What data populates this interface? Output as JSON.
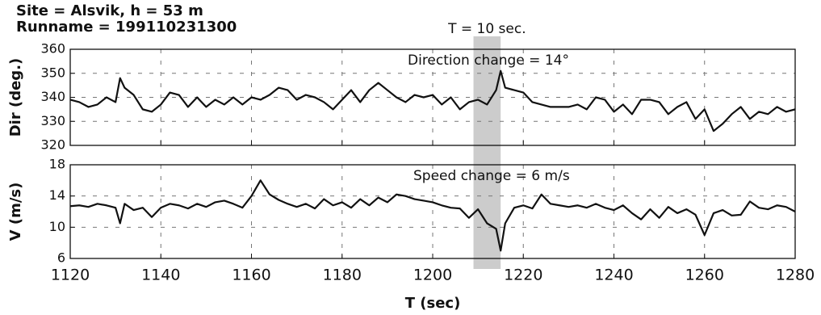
{
  "chart_data": [
    {
      "type": "line",
      "title": "Site = Alsvik, h = 53 m",
      "subtitle": "Runname = 199110231300",
      "ylabel": "Dir (deg.)",
      "highlight": [
        1209,
        1215
      ],
      "highlight_label": "T = 10 sec.",
      "annotation": "Direction change = 14°",
      "color": "#111111",
      "grid": true,
      "xlim": [
        1120,
        1280
      ],
      "xticks": [
        1120,
        1140,
        1160,
        1180,
        1200,
        1220,
        1240,
        1260,
        1280
      ],
      "ylim": [
        320,
        360
      ],
      "yticks": [
        320,
        330,
        340,
        350,
        360
      ],
      "x": [
        1120,
        1122,
        1124,
        1126,
        1128,
        1130,
        1131,
        1132,
        1134,
        1136,
        1138,
        1140,
        1142,
        1144,
        1146,
        1148,
        1150,
        1152,
        1154,
        1156,
        1158,
        1160,
        1162,
        1164,
        1166,
        1168,
        1170,
        1172,
        1174,
        1176,
        1178,
        1180,
        1182,
        1184,
        1186,
        1188,
        1190,
        1192,
        1194,
        1196,
        1198,
        1200,
        1202,
        1204,
        1206,
        1208,
        1210,
        1212,
        1214,
        1215,
        1216,
        1218,
        1220,
        1222,
        1224,
        1226,
        1228,
        1230,
        1232,
        1234,
        1236,
        1238,
        1240,
        1242,
        1244,
        1246,
        1248,
        1250,
        1252,
        1254,
        1256,
        1258,
        1260,
        1262,
        1264,
        1266,
        1268,
        1270,
        1272,
        1274,
        1276,
        1278,
        1280
      ],
      "values": [
        339,
        338,
        336,
        337,
        340,
        338,
        348,
        344,
        341,
        335,
        334,
        337,
        342,
        341,
        336,
        340,
        336,
        339,
        337,
        340,
        337,
        340,
        339,
        341,
        344,
        343,
        339,
        341,
        340,
        338,
        335,
        339,
        343,
        338,
        343,
        346,
        343,
        340,
        338,
        341,
        340,
        341,
        337,
        340,
        335,
        338,
        339,
        337,
        343,
        351,
        344,
        343,
        342,
        338,
        337,
        336,
        336,
        336,
        337,
        335,
        340,
        339,
        334,
        337,
        333,
        339,
        339,
        338,
        333,
        336,
        338,
        331,
        335,
        326,
        329,
        333,
        336,
        331,
        334,
        333,
        336,
        334,
        335
      ]
    },
    {
      "type": "line",
      "ylabel": "V (m/s)",
      "xlabel": "T (sec)",
      "annotation": "Speed change = 6 m/s",
      "color": "#111111",
      "grid": true,
      "xlim": [
        1120,
        1280
      ],
      "xticks": [
        1120,
        1140,
        1160,
        1180,
        1200,
        1220,
        1240,
        1260,
        1280
      ],
      "ylim": [
        6,
        18
      ],
      "yticks": [
        6,
        10,
        14,
        18
      ],
      "x": [
        1120,
        1122,
        1124,
        1126,
        1128,
        1130,
        1131,
        1132,
        1134,
        1136,
        1138,
        1140,
        1142,
        1144,
        1146,
        1148,
        1150,
        1152,
        1154,
        1156,
        1158,
        1160,
        1162,
        1164,
        1166,
        1168,
        1170,
        1172,
        1174,
        1176,
        1178,
        1180,
        1182,
        1184,
        1186,
        1188,
        1190,
        1192,
        1194,
        1196,
        1198,
        1200,
        1202,
        1204,
        1206,
        1208,
        1210,
        1212,
        1214,
        1215,
        1216,
        1218,
        1220,
        1222,
        1224,
        1226,
        1228,
        1230,
        1232,
        1234,
        1236,
        1238,
        1240,
        1242,
        1244,
        1246,
        1248,
        1250,
        1252,
        1254,
        1256,
        1258,
        1260,
        1262,
        1264,
        1266,
        1268,
        1270,
        1272,
        1274,
        1276,
        1278,
        1280
      ],
      "values": [
        12.7,
        12.8,
        12.6,
        13.0,
        12.8,
        12.5,
        10.5,
        13.0,
        12.2,
        12.5,
        11.3,
        12.5,
        13.0,
        12.8,
        12.4,
        13.0,
        12.6,
        13.2,
        13.4,
        13.0,
        12.5,
        14.0,
        16.0,
        14.2,
        13.5,
        13.0,
        12.6,
        13.0,
        12.4,
        13.6,
        12.8,
        13.2,
        12.5,
        13.6,
        12.8,
        13.8,
        13.2,
        14.2,
        14.0,
        13.6,
        13.4,
        13.2,
        12.8,
        12.5,
        12.4,
        11.2,
        12.3,
        10.5,
        9.8,
        7.0,
        10.5,
        12.5,
        12.8,
        12.4,
        14.2,
        13.0,
        12.8,
        12.6,
        12.8,
        12.5,
        13.0,
        12.5,
        12.2,
        12.8,
        11.8,
        11.0,
        12.3,
        11.2,
        12.6,
        11.8,
        12.3,
        11.6,
        9.0,
        11.8,
        12.2,
        11.5,
        11.6,
        13.3,
        12.5,
        12.3,
        12.8,
        12.6,
        12.0
      ]
    }
  ]
}
